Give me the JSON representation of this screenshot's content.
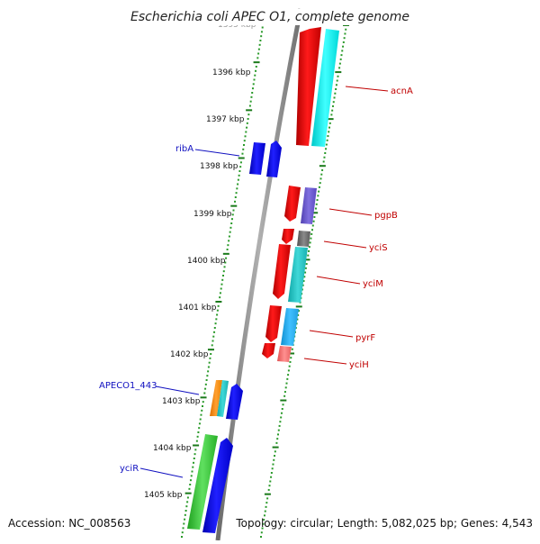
{
  "header": {
    "title": "Escherichia coli APEC O1, complete genome"
  },
  "footer": {
    "accession": "Accession: NC_008563",
    "topology": "Topology: circular; Length: 5,082,025 bp; Genes: 4,543"
  },
  "colors": {
    "backbone": "#888888",
    "tick_dark": "#1a7a1a",
    "dot_green": "#2a9a2a",
    "forward_label": "#1010c0",
    "reverse_label": "#c00000"
  },
  "ruler": {
    "partial_top_label": "1395 kbp",
    "labels": [
      "1396 kbp",
      "1397 kbp",
      "1398 kbp",
      "1399 kbp",
      "1400 kbp",
      "1401 kbp",
      "1402 kbp",
      "1403 kbp",
      "1404 kbp",
      "1405 kbp"
    ]
  },
  "gene_labels": {
    "forward": [
      "ribA",
      "APECO1_443",
      "yciR"
    ],
    "reverse": [
      "acnA",
      "pgpB",
      "yciS",
      "yciM",
      "pyrF",
      "yciH"
    ]
  },
  "features": {
    "reverse_strand": [
      "red",
      "cyan",
      "red",
      "slateblue",
      "red",
      "gray",
      "red",
      "teal",
      "red",
      "skyblue",
      "red",
      "salmon"
    ],
    "forward_strand": [
      "blue",
      "blue",
      "orange",
      "teal",
      "blue",
      "green",
      "blue"
    ]
  }
}
